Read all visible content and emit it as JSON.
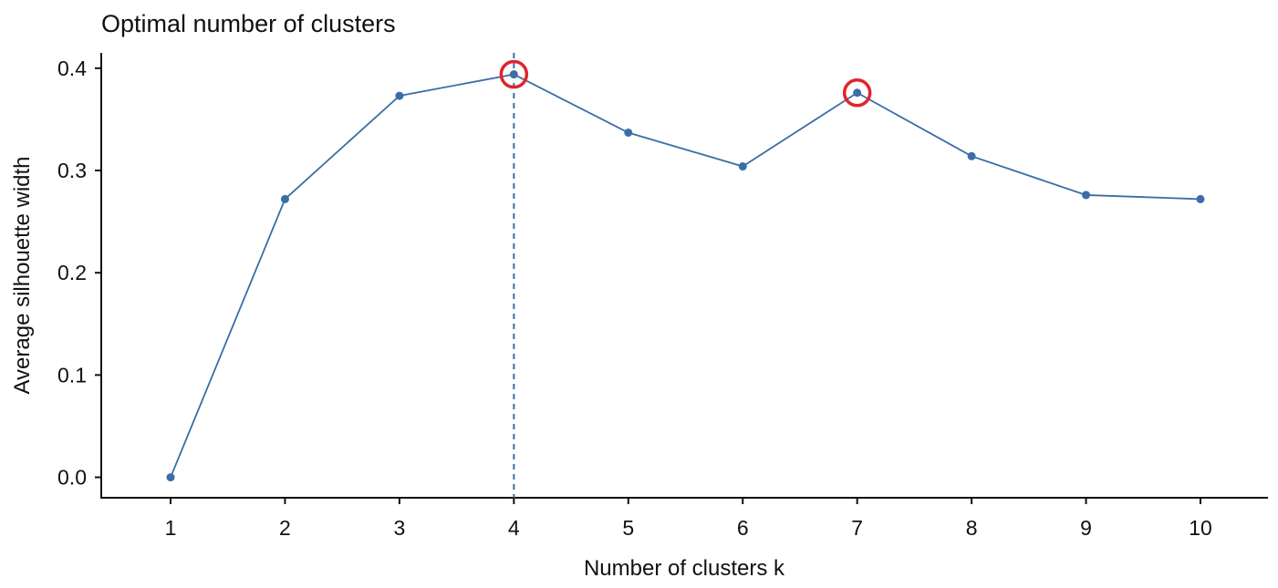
{
  "chart_data": {
    "type": "line",
    "title": "Optimal number of clusters",
    "xlabel": "Number of clusters k",
    "ylabel": "Average silhouette width",
    "categories": [
      "1",
      "2",
      "3",
      "4",
      "5",
      "6",
      "7",
      "8",
      "9",
      "10"
    ],
    "series": [
      {
        "values": [
          0.0,
          0.272,
          0.373,
          0.394,
          0.337,
          0.304,
          0.376,
          0.314,
          0.276,
          0.272
        ]
      }
    ],
    "yticks": [
      "0.0",
      "0.1",
      "0.2",
      "0.3",
      "0.4"
    ],
    "ylim": [
      -0.02,
      0.415
    ],
    "optimal_k": "4",
    "highlighted_k": [
      "4",
      "7"
    ],
    "grid": false,
    "colors": {
      "line": "#3a6ea5",
      "marker": "#3a6ea5",
      "vline": "#3a6ea5",
      "highlight": "#e0242b",
      "axis": "#111111"
    }
  }
}
